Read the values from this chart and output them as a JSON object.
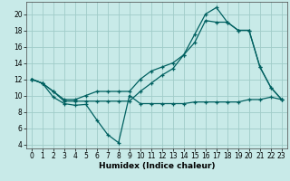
{
  "xlabel": "Humidex (Indice chaleur)",
  "bg_color": "#c8eae8",
  "grid_color": "#a0ccc8",
  "line_color": "#006060",
  "xlim": [
    -0.5,
    23.5
  ],
  "ylim": [
    3.5,
    21.5
  ],
  "xticks": [
    0,
    1,
    2,
    3,
    4,
    5,
    6,
    7,
    8,
    9,
    10,
    11,
    12,
    13,
    14,
    15,
    16,
    17,
    18,
    19,
    20,
    21,
    22,
    23
  ],
  "yticks": [
    4,
    6,
    8,
    10,
    12,
    14,
    16,
    18,
    20
  ],
  "line1_x": [
    0,
    1,
    2,
    3,
    4,
    5,
    6,
    7,
    8,
    9,
    10,
    11,
    12,
    13,
    14,
    15,
    16,
    17,
    18,
    19,
    20,
    21,
    22,
    23
  ],
  "line1_y": [
    12,
    11.5,
    9.8,
    9,
    8.8,
    8.9,
    7,
    5.2,
    4.2,
    10,
    9,
    9,
    9,
    9,
    9,
    9.2,
    9.2,
    9.2,
    9.2,
    9.2,
    9.5,
    9.5,
    9.8,
    9.5
  ],
  "line2_x": [
    0,
    1,
    2,
    3,
    4,
    5,
    6,
    7,
    8,
    9,
    10,
    11,
    12,
    13,
    14,
    15,
    16,
    17,
    18,
    19,
    20,
    21,
    22,
    23
  ],
  "line2_y": [
    12,
    11.5,
    10.5,
    9.3,
    9.3,
    9.3,
    9.3,
    9.3,
    9.3,
    9.3,
    10.5,
    11.5,
    12.5,
    13.3,
    15,
    16.5,
    19.2,
    19,
    19,
    18,
    18,
    13.5,
    11,
    9.5
  ],
  "line3_x": [
    0,
    1,
    2,
    3,
    4,
    5,
    6,
    7,
    8,
    9,
    10,
    11,
    12,
    13,
    14,
    15,
    16,
    17,
    18,
    19,
    20,
    21,
    22,
    23
  ],
  "line3_y": [
    12,
    11.5,
    10.5,
    9.5,
    9.5,
    10,
    10.5,
    10.5,
    10.5,
    10.5,
    12,
    13,
    13.5,
    14,
    15,
    17.5,
    20,
    20.8,
    19,
    18,
    18,
    13.5,
    11,
    9.5
  ],
  "xlabel_fontsize": 6.5,
  "tick_fontsize": 5.5
}
